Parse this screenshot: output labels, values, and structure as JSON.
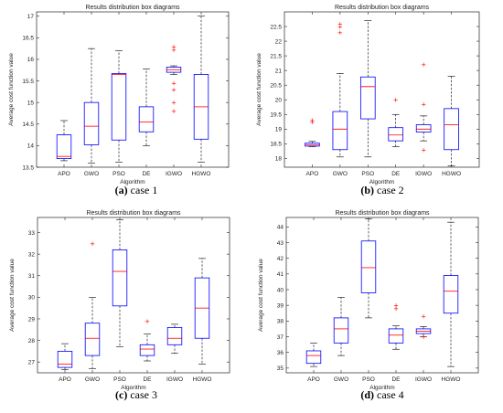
{
  "colors": {
    "box": "#0000ff",
    "median": "#ff0000",
    "whisker": "#000000",
    "outlier": "#ff0000",
    "axis": "#262626"
  },
  "chart_data": [
    {
      "type": "box",
      "title": "Results distribution box diagrams",
      "xlabel": "Algorithm",
      "ylabel": "Average cost function value",
      "caption_tag": "(a)",
      "caption_text": " case 1",
      "categories": [
        "APO",
        "GWO",
        "PSO",
        "DE",
        "IGWO",
        "HGWO"
      ],
      "ylim": [
        13.5,
        17.1
      ],
      "yticks": [
        "13.5",
        "14",
        "14.5",
        "15",
        "15.5",
        "16",
        "16.5",
        "17"
      ],
      "ytick_values": [
        13.5,
        14,
        14.5,
        15,
        15.5,
        16,
        16.5,
        17
      ],
      "boxes": [
        {
          "min": 13.65,
          "q1": 13.7,
          "median": 13.75,
          "q3": 14.25,
          "max": 14.58,
          "outliers": []
        },
        {
          "min": 13.6,
          "q1": 14.02,
          "median": 14.45,
          "q3": 15.0,
          "max": 16.25,
          "outliers": []
        },
        {
          "min": 13.62,
          "q1": 14.13,
          "median": 15.65,
          "q3": 15.67,
          "max": 16.2,
          "outliers": []
        },
        {
          "min": 14.0,
          "q1": 14.32,
          "median": 14.55,
          "q3": 14.9,
          "max": 15.78,
          "outliers": []
        },
        {
          "min": 15.65,
          "q1": 15.7,
          "median": 15.76,
          "q3": 15.82,
          "max": 15.85,
          "outliers": [
            16.3,
            16.22,
            15.45,
            15.3,
            15.0,
            14.8
          ]
        },
        {
          "min": 13.62,
          "q1": 14.15,
          "median": 14.9,
          "q3": 15.65,
          "max": 17.0,
          "outliers": []
        }
      ]
    },
    {
      "type": "box",
      "title": "Results distribution box diagrams",
      "xlabel": "Algorithm",
      "ylabel": "Average cost function value",
      "caption_tag": "(b)",
      "caption_text": " case 2",
      "categories": [
        "APO",
        "GWO",
        "PSO",
        "DE",
        "IGWO",
        "HGWO"
      ],
      "ylim": [
        17.7,
        23.0
      ],
      "yticks": [
        "18",
        "18.5",
        "19",
        "19.5",
        "20",
        "20.5",
        "21",
        "21.5",
        "22",
        "22.5"
      ],
      "ytick_values": [
        18,
        18.5,
        19,
        19.5,
        20,
        20.5,
        21,
        21.5,
        22,
        22.5
      ],
      "boxes": [
        {
          "min": 18.4,
          "q1": 18.42,
          "median": 18.47,
          "q3": 18.52,
          "max": 18.58,
          "outliers": [
            19.3,
            19.25
          ]
        },
        {
          "min": 18.05,
          "q1": 18.3,
          "median": 19.0,
          "q3": 19.6,
          "max": 20.9,
          "outliers": [
            22.6,
            22.5,
            22.3
          ]
        },
        {
          "min": 18.05,
          "q1": 19.35,
          "median": 20.45,
          "q3": 20.78,
          "max": 22.7,
          "outliers": []
        },
        {
          "min": 18.4,
          "q1": 18.6,
          "median": 18.8,
          "q3": 19.05,
          "max": 19.5,
          "outliers": [
            20.0
          ]
        },
        {
          "min": 18.6,
          "q1": 18.9,
          "median": 19.0,
          "q3": 19.15,
          "max": 19.45,
          "outliers": [
            21.2,
            19.85,
            18.3
          ]
        },
        {
          "min": 17.75,
          "q1": 18.3,
          "median": 19.15,
          "q3": 19.7,
          "max": 20.8,
          "outliers": []
        }
      ]
    },
    {
      "type": "box",
      "title": "Results distribution box diagrams",
      "xlabel": "Algorithm",
      "ylabel": "Average cost function value",
      "caption_tag": "(c)",
      "caption_text": " case 3",
      "categories": [
        "APO",
        "GWO",
        "PSO",
        "DE",
        "IGWO",
        "HGWO"
      ],
      "ylim": [
        26.5,
        33.7
      ],
      "yticks": [
        "27",
        "28",
        "29",
        "30",
        "31",
        "32",
        "33"
      ],
      "ytick_values": [
        27,
        28,
        29,
        30,
        31,
        32,
        33
      ],
      "boxes": [
        {
          "min": 26.65,
          "q1": 26.75,
          "median": 26.9,
          "q3": 27.5,
          "max": 27.85,
          "outliers": []
        },
        {
          "min": 26.7,
          "q1": 27.3,
          "median": 28.1,
          "q3": 28.8,
          "max": 30.0,
          "outliers": [
            32.5
          ]
        },
        {
          "min": 27.7,
          "q1": 29.6,
          "median": 31.2,
          "q3": 32.2,
          "max": 33.6,
          "outliers": []
        },
        {
          "min": 27.05,
          "q1": 27.3,
          "median": 27.6,
          "q3": 27.8,
          "max": 28.3,
          "outliers": [
            28.9
          ]
        },
        {
          "min": 27.4,
          "q1": 27.8,
          "median": 28.1,
          "q3": 28.6,
          "max": 28.75,
          "outliers": []
        },
        {
          "min": 26.9,
          "q1": 28.1,
          "median": 29.5,
          "q3": 30.9,
          "max": 31.8,
          "outliers": []
        }
      ]
    },
    {
      "type": "box",
      "title": "Results distribution box diagrams",
      "xlabel": "Algorithm",
      "ylabel": "Average cost function value",
      "caption_tag": "(d)",
      "caption_text": " case 4",
      "categories": [
        "APO",
        "GWO",
        "PSO",
        "DE",
        "IGWO",
        "HGWO"
      ],
      "ylim": [
        34.7,
        44.6
      ],
      "yticks": [
        "35",
        "36",
        "37",
        "38",
        "39",
        "40",
        "41",
        "42",
        "43",
        "44"
      ],
      "ytick_values": [
        35,
        36,
        37,
        38,
        39,
        40,
        41,
        42,
        43,
        44
      ],
      "boxes": [
        {
          "min": 35.1,
          "q1": 35.3,
          "median": 35.8,
          "q3": 36.1,
          "max": 36.6,
          "outliers": []
        },
        {
          "min": 35.8,
          "q1": 36.6,
          "median": 37.5,
          "q3": 38.2,
          "max": 39.5,
          "outliers": []
        },
        {
          "min": 38.2,
          "q1": 39.8,
          "median": 41.4,
          "q3": 43.1,
          "max": 44.5,
          "outliers": []
        },
        {
          "min": 36.2,
          "q1": 36.6,
          "median": 37.1,
          "q3": 37.5,
          "max": 37.7,
          "outliers": [
            39.0,
            38.8
          ]
        },
        {
          "min": 37.0,
          "q1": 37.2,
          "median": 37.35,
          "q3": 37.5,
          "max": 37.65,
          "outliers": [
            38.3,
            37.0
          ]
        },
        {
          "min": 35.1,
          "q1": 38.5,
          "median": 39.9,
          "q3": 40.9,
          "max": 44.3,
          "outliers": []
        }
      ]
    }
  ]
}
